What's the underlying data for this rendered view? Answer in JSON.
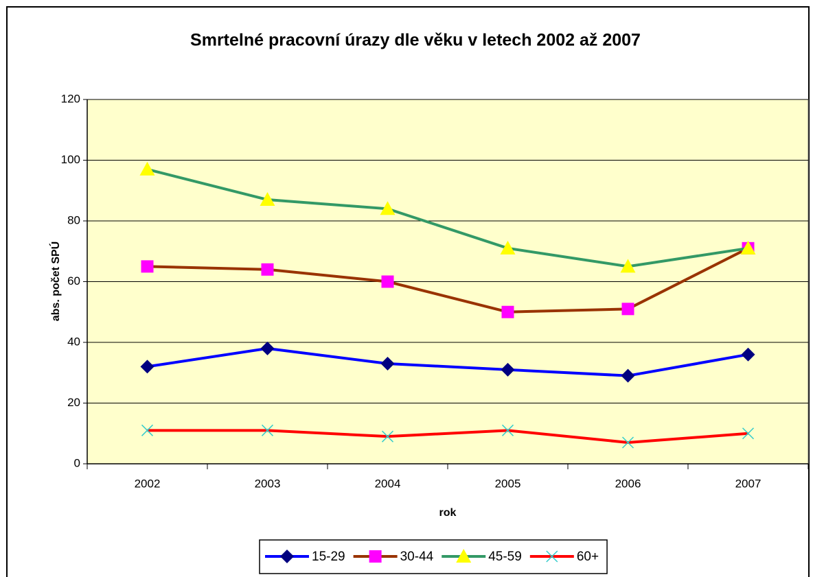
{
  "chart_data": {
    "type": "line",
    "title": "Smrtelné pracovní úrazy dle věku v letech 2002 až 2007",
    "x_label": "rok",
    "y_label": "abs. počet SPÚ",
    "categories": [
      "2002",
      "2003",
      "2004",
      "2005",
      "2006",
      "2007"
    ],
    "series": [
      {
        "name": "15-29",
        "color": "#0000ff",
        "marker": "diamond",
        "marker_color": "#000080",
        "values": [
          32,
          38,
          33,
          31,
          29,
          36
        ]
      },
      {
        "name": "30-44",
        "color": "#993300",
        "marker": "square",
        "marker_color": "#ff00ff",
        "values": [
          65,
          64,
          60,
          50,
          51,
          71
        ]
      },
      {
        "name": "45-59",
        "color": "#339966",
        "marker": "triangle",
        "marker_color": "#ffff00",
        "values": [
          97,
          87,
          84,
          71,
          65,
          71
        ]
      },
      {
        "name": "60+",
        "color": "#ff0000",
        "marker": "x",
        "marker_color": "#33cccc",
        "values": [
          11,
          11,
          9,
          11,
          7,
          10
        ]
      }
    ],
    "ylim": [
      0,
      120
    ],
    "yticks": [
      0,
      20,
      40,
      60,
      80,
      100,
      120
    ],
    "grid": true,
    "plot_background": "#ffffcc",
    "legend": "bottom"
  }
}
